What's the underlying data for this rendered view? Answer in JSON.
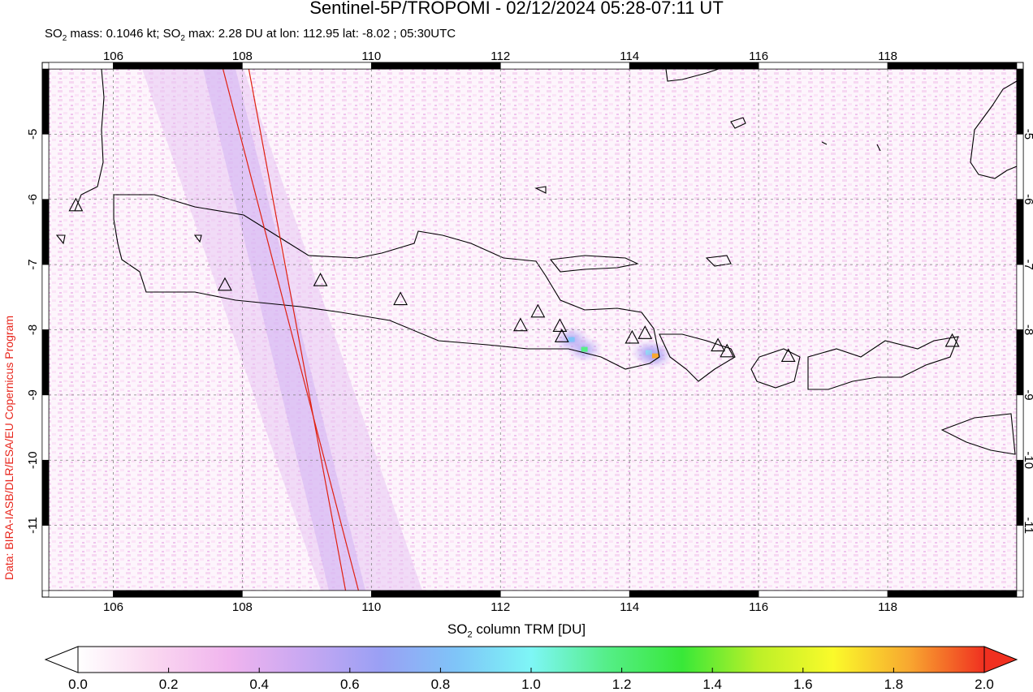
{
  "header": {
    "title": "Sentinel-5P/TROPOMI - 02/12/2024 05:28-07:11 UT",
    "subtitle_parts": {
      "p1": "SO",
      "sub1": "2",
      "p2": " mass: 0.1046 kt; SO",
      "sub2": "2",
      "p3": " max: 2.28 DU at lon: 112.95 lat: -8.02 ; 05:30UTC"
    }
  },
  "credit": "Data: BIRA-IASB/DLR/ESA/EU Copernicus Program",
  "map": {
    "lon_range": [
      105,
      120
    ],
    "lat_range": [
      -12,
      -4
    ],
    "lon_ticks": [
      106,
      108,
      110,
      112,
      114,
      116,
      118
    ],
    "lat_ticks": [
      -5,
      -6,
      -7,
      -8,
      -9,
      -10,
      -11
    ],
    "tick_labels_x": [
      "106",
      "108",
      "110",
      "112",
      "114",
      "116",
      "118"
    ],
    "tick_labels_y": [
      "-5",
      "-6",
      "-7",
      "-8",
      "-9",
      "-10",
      "-11"
    ],
    "swath_edge_lines": [
      [
        [
          107.7,
          -4
        ],
        [
          109.8,
          -12
        ]
      ],
      [
        [
          108.1,
          -4
        ],
        [
          109.6,
          -12
        ]
      ]
    ],
    "volcanoes": [
      {
        "lon": 105.42,
        "lat": -6.1
      },
      {
        "lon": 107.73,
        "lat": -7.32
      },
      {
        "lon": 109.21,
        "lat": -7.25
      },
      {
        "lon": 110.45,
        "lat": -7.54
      },
      {
        "lon": 112.31,
        "lat": -7.94
      },
      {
        "lon": 112.58,
        "lat": -7.73
      },
      {
        "lon": 112.92,
        "lat": -7.95
      },
      {
        "lon": 112.95,
        "lat": -8.11
      },
      {
        "lon": 114.04,
        "lat": -8.13
      },
      {
        "lon": 114.24,
        "lat": -8.06
      },
      {
        "lon": 115.37,
        "lat": -8.25
      },
      {
        "lon": 115.51,
        "lat": -8.34
      },
      {
        "lon": 116.46,
        "lat": -8.41
      },
      {
        "lon": 119.0,
        "lat": -8.18
      }
    ],
    "hotspots": [
      {
        "lon": 113.1,
        "lat": -8.15,
        "value": 0.9
      },
      {
        "lon": 113.3,
        "lat": -8.3,
        "value": 1.2
      },
      {
        "lon": 114.3,
        "lat": -8.35,
        "value": 1.0
      },
      {
        "lon": 114.4,
        "lat": -8.4,
        "value": 1.9
      }
    ]
  },
  "colorbar": {
    "label_parts": {
      "p1": "SO",
      "sub": "2",
      "p2": " column TRM [DU]"
    },
    "min": 0.0,
    "max": 2.0,
    "tick_values": [
      0.0,
      0.2,
      0.4,
      0.6,
      0.8,
      1.0,
      1.2,
      1.4,
      1.6,
      1.8,
      2.0
    ],
    "tick_labels": [
      "0.0",
      "0.2",
      "0.4",
      "0.6",
      "0.8",
      "1.0",
      "1.2",
      "1.4",
      "1.6",
      "1.8",
      "2.0"
    ],
    "colors": [
      "#ffffff",
      "#fad7f0",
      "#f0b4ee",
      "#c8a8f2",
      "#9aa0f4",
      "#7fc4f8",
      "#7ef6f6",
      "#55ee88",
      "#38e838",
      "#bcf028",
      "#fafa2a",
      "#f8a830",
      "#f03020"
    ],
    "under_color": "#ffffff",
    "over_color": "#f03020"
  },
  "chart_data": {
    "type": "heatmap",
    "title": "Sentinel-5P/TROPOMI - 02/12/2024 05:28-07:11 UT",
    "xlabel": "",
    "ylabel": "",
    "xlim": [
      105,
      120
    ],
    "ylim": [
      -12,
      -4
    ],
    "colorbar_label": "SO2 column TRM [DU]",
    "value_range": [
      0.0,
      2.0
    ],
    "peak": {
      "value": 2.28,
      "lon": 112.95,
      "lat": -8.02,
      "time": "05:30UTC"
    },
    "so2_mass_kt": 0.1046,
    "grid": true
  }
}
